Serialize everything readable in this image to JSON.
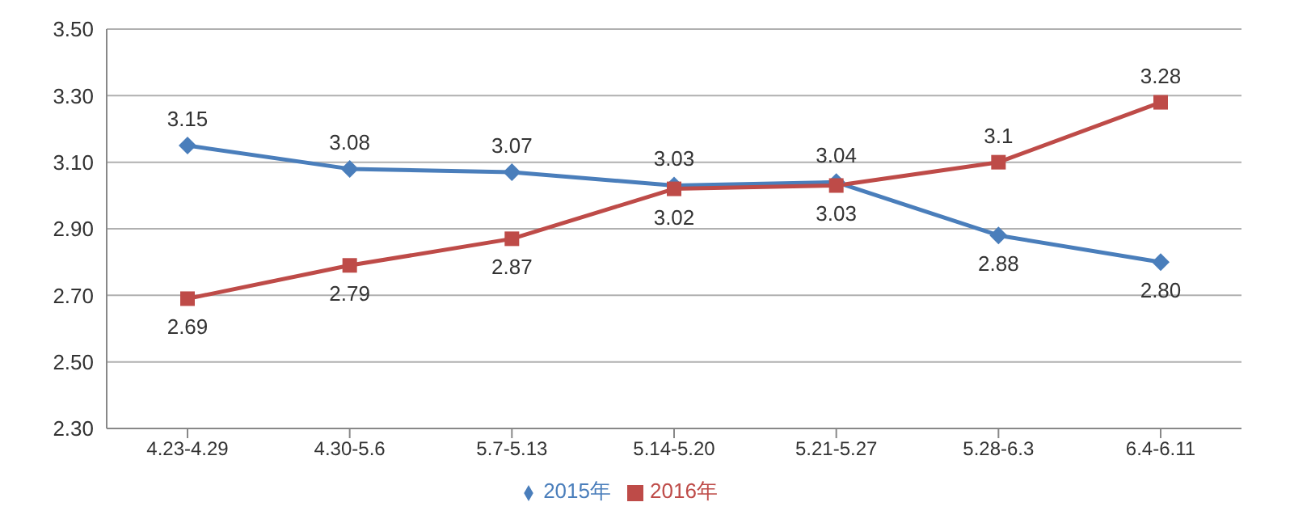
{
  "chart_data": {
    "type": "line",
    "categories": [
      "4.23-4.29",
      "4.30-5.6",
      "5.7-5.13",
      "5.14-5.20",
      "5.21-5.27",
      "5.28-6.3",
      "6.4-6.11"
    ],
    "series": [
      {
        "name": "2015年",
        "color": "#4a7ebb",
        "marker": "diamond",
        "values": [
          3.15,
          3.08,
          3.07,
          3.03,
          3.04,
          2.88,
          2.8
        ],
        "value_labels": [
          "3.15",
          "3.08",
          "3.07",
          "3.03",
          "3.04",
          "2.88",
          "2.80"
        ]
      },
      {
        "name": "2016年",
        "color": "#be4b48",
        "marker": "square",
        "values": [
          2.69,
          2.79,
          2.87,
          3.02,
          3.03,
          3.1,
          3.28
        ],
        "value_labels": [
          "2.69",
          "2.79",
          "2.87",
          "3.02",
          "3.03",
          "3.1",
          "3.28"
        ]
      }
    ],
    "ylim": [
      2.3,
      3.5
    ],
    "yticks": [
      {
        "value": 2.3,
        "label": "2.30"
      },
      {
        "value": 2.5,
        "label": "2.50"
      },
      {
        "value": 2.7,
        "label": "2.70"
      },
      {
        "value": 2.9,
        "label": "2.90"
      },
      {
        "value": 3.1,
        "label": "3.10"
      },
      {
        "value": 3.3,
        "label": "3.30"
      },
      {
        "value": 3.5,
        "label": "3.50"
      }
    ],
    "grid": "y",
    "legend": "bottom"
  }
}
